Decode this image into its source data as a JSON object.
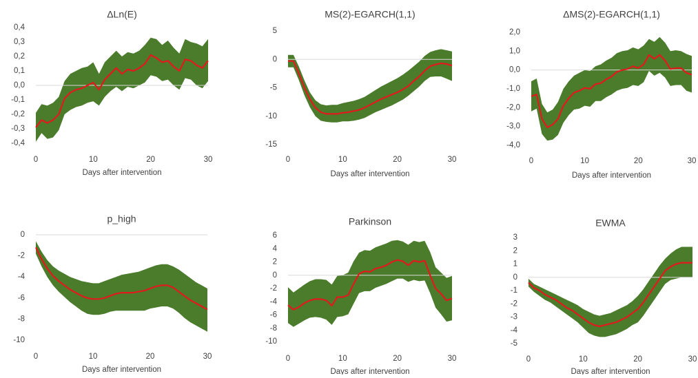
{
  "chart_data": [
    {
      "type": "area",
      "title": "ΔLn(E)",
      "xlabel": "Days after intervention",
      "ylabel": "",
      "xlim": [
        0,
        30
      ],
      "ylim": [
        -0.4,
        0.4
      ],
      "xticks": [
        0,
        10,
        20,
        30
      ],
      "yticks": [
        -0.4,
        -0.3,
        -0.2,
        -0.1,
        0.0,
        0.1,
        0.2,
        0.3,
        0.4
      ],
      "ytick_labels": [
        "-0,4",
        "-0,3",
        "-0,2",
        "-0,1",
        "0,0",
        "0,1",
        "0,2",
        "0,3",
        "0,4"
      ],
      "xtick_labels": [
        "0",
        "10",
        "20",
        "30"
      ],
      "x": [
        0,
        1,
        2,
        3,
        4,
        5,
        6,
        7,
        8,
        9,
        10,
        11,
        12,
        13,
        14,
        15,
        16,
        17,
        18,
        19,
        20,
        21,
        22,
        23,
        24,
        25,
        26,
        27,
        28,
        29,
        30
      ],
      "series": [
        {
          "role": "estimate",
          "color": "#e31a1c",
          "values": [
            -0.29,
            -0.24,
            -0.26,
            -0.24,
            -0.2,
            -0.09,
            -0.05,
            -0.03,
            -0.02,
            0.0,
            0.02,
            -0.03,
            0.04,
            0.08,
            0.12,
            0.08,
            0.11,
            0.1,
            0.12,
            0.15,
            0.21,
            0.19,
            0.16,
            0.17,
            0.13,
            0.1,
            0.18,
            0.17,
            0.14,
            0.12,
            0.17
          ]
        },
        {
          "role": "upper_band",
          "color": "#4a7c2b",
          "values": [
            -0.19,
            -0.13,
            -0.14,
            -0.12,
            -0.08,
            0.03,
            0.08,
            0.1,
            0.12,
            0.13,
            0.16,
            0.08,
            0.16,
            0.2,
            0.24,
            0.2,
            0.23,
            0.22,
            0.24,
            0.28,
            0.33,
            0.32,
            0.28,
            0.31,
            0.26,
            0.22,
            0.32,
            0.3,
            0.29,
            0.27,
            0.32
          ]
        },
        {
          "role": "lower_band",
          "color": "#4a7c2b",
          "values": [
            -0.39,
            -0.33,
            -0.37,
            -0.36,
            -0.31,
            -0.2,
            -0.17,
            -0.15,
            -0.14,
            -0.12,
            -0.11,
            -0.14,
            -0.08,
            -0.04,
            -0.01,
            -0.04,
            -0.01,
            -0.02,
            0.0,
            0.02,
            0.07,
            0.06,
            0.03,
            0.04,
            0.0,
            -0.03,
            0.05,
            0.04,
            0.0,
            -0.02,
            0.03
          ]
        }
      ]
    },
    {
      "type": "area",
      "title": "MS(2)-EGARCH(1,1)",
      "xlabel": "Days after intervention",
      "ylabel": "",
      "xlim": [
        0,
        30
      ],
      "ylim": [
        -15,
        5
      ],
      "xticks": [
        0,
        10,
        20,
        30
      ],
      "yticks": [
        -15,
        -10,
        -5,
        0,
        5
      ],
      "ytick_labels": [
        "-15",
        "-10",
        "-5",
        "0",
        "5"
      ],
      "xtick_labels": [
        "0",
        "10",
        "20",
        "30"
      ],
      "x": [
        0,
        1,
        2,
        3,
        4,
        5,
        6,
        7,
        8,
        9,
        10,
        11,
        12,
        13,
        14,
        15,
        16,
        17,
        18,
        19,
        20,
        21,
        22,
        23,
        24,
        25,
        26,
        27,
        28,
        29,
        30
      ],
      "series": [
        {
          "role": "estimate",
          "color": "#e31a1c",
          "values": [
            -0.3,
            -0.3,
            -2.5,
            -5.0,
            -7.0,
            -8.5,
            -9.3,
            -9.6,
            -9.6,
            -9.6,
            -9.4,
            -9.3,
            -9.1,
            -8.9,
            -8.5,
            -8.0,
            -7.5,
            -7.0,
            -6.6,
            -6.2,
            -5.8,
            -5.3,
            -4.7,
            -3.8,
            -3.0,
            -2.0,
            -1.2,
            -0.9,
            -0.7,
            -0.8,
            -1.1
          ]
        },
        {
          "role": "upper_band",
          "color": "#4a7c2b",
          "values": [
            0.8,
            0.8,
            -1.3,
            -3.7,
            -5.8,
            -7.2,
            -7.9,
            -8.1,
            -8.0,
            -8.0,
            -7.7,
            -7.5,
            -7.3,
            -7.0,
            -6.6,
            -6.0,
            -5.4,
            -4.8,
            -4.3,
            -3.8,
            -3.3,
            -2.7,
            -2.0,
            -1.2,
            -0.4,
            0.6,
            1.3,
            1.6,
            1.8,
            1.6,
            1.4
          ]
        },
        {
          "role": "lower_band",
          "color": "#4a7c2b",
          "values": [
            -1.4,
            -1.4,
            -3.7,
            -6.3,
            -8.4,
            -10.0,
            -10.8,
            -11.0,
            -11.1,
            -11.1,
            -10.9,
            -10.9,
            -10.8,
            -10.6,
            -10.3,
            -9.8,
            -9.3,
            -8.9,
            -8.5,
            -8.1,
            -7.6,
            -7.1,
            -6.4,
            -5.6,
            -4.8,
            -3.8,
            -3.1,
            -3.0,
            -3.0,
            -3.4,
            -3.8
          ]
        }
      ]
    },
    {
      "type": "area",
      "title": "ΔMS(2)-EGARCH(1,1)",
      "xlabel": "Days after intervention",
      "ylabel": "",
      "xlim": [
        0,
        30
      ],
      "ylim": [
        -4,
        2
      ],
      "xticks": [
        0,
        10,
        20,
        30
      ],
      "yticks": [
        -4,
        -3,
        -2,
        -1,
        0,
        1,
        2
      ],
      "ytick_labels": [
        "-4,0",
        "-3,0",
        "-2,0",
        "-1,0",
        "0,0",
        "1,0",
        "2,0"
      ],
      "xtick_labels": [
        "0",
        "10",
        "20",
        "30"
      ],
      "x": [
        0,
        1,
        2,
        3,
        4,
        5,
        6,
        7,
        8,
        9,
        10,
        11,
        12,
        13,
        14,
        15,
        16,
        17,
        18,
        19,
        20,
        21,
        22,
        23,
        24,
        25,
        26,
        27,
        28,
        29,
        30
      ],
      "series": [
        {
          "role": "estimate",
          "color": "#e31a1c",
          "values": [
            -1.4,
            -1.3,
            -2.6,
            -3.05,
            -2.9,
            -2.6,
            -1.9,
            -1.5,
            -1.2,
            -1.1,
            -0.95,
            -1.0,
            -0.75,
            -0.7,
            -0.5,
            -0.35,
            -0.1,
            0.0,
            0.05,
            0.2,
            0.1,
            0.3,
            0.8,
            0.6,
            0.8,
            0.5,
            0.05,
            0.1,
            0.1,
            -0.15,
            -0.25
          ]
        },
        {
          "role": "upper_band",
          "color": "#4a7c2b",
          "values": [
            -0.6,
            -0.45,
            -1.8,
            -2.25,
            -2.1,
            -1.7,
            -1.0,
            -0.6,
            -0.3,
            -0.15,
            0.0,
            -0.05,
            0.2,
            0.3,
            0.5,
            0.65,
            0.9,
            1.0,
            1.05,
            1.2,
            1.1,
            1.3,
            1.65,
            1.5,
            1.75,
            1.45,
            1.0,
            1.05,
            1.0,
            0.85,
            0.75
          ]
        },
        {
          "role": "lower_band",
          "color": "#4a7c2b",
          "values": [
            -2.2,
            -2.05,
            -3.4,
            -3.75,
            -3.7,
            -3.45,
            -2.8,
            -2.4,
            -2.1,
            -2.05,
            -1.9,
            -1.95,
            -1.65,
            -1.65,
            -1.45,
            -1.3,
            -1.1,
            -1.0,
            -0.95,
            -0.8,
            -0.85,
            -0.65,
            -0.05,
            -0.3,
            -0.15,
            -0.4,
            -0.85,
            -0.8,
            -0.8,
            -1.1,
            -1.2
          ]
        }
      ]
    },
    {
      "type": "area",
      "title": "p_high",
      "xlabel": "Days after intervention",
      "ylabel": "",
      "xlim": [
        0,
        30
      ],
      "ylim": [
        -10,
        0
      ],
      "xticks": [
        0,
        10,
        20,
        30
      ],
      "yticks": [
        -10,
        -8,
        -6,
        -4,
        -2,
        0
      ],
      "ytick_labels": [
        "-10",
        "-8",
        "-6",
        "-4",
        "-2",
        "0"
      ],
      "xtick_labels": [
        "0",
        "10",
        "20",
        "30"
      ],
      "x": [
        0,
        1,
        2,
        3,
        4,
        5,
        6,
        7,
        8,
        9,
        10,
        11,
        12,
        13,
        14,
        15,
        16,
        17,
        18,
        19,
        20,
        21,
        22,
        23,
        24,
        25,
        26,
        27,
        28,
        29,
        30
      ],
      "series": [
        {
          "role": "estimate",
          "color": "#e31a1c",
          "values": [
            -1.2,
            -2.3,
            -3.2,
            -3.9,
            -4.4,
            -4.8,
            -5.2,
            -5.5,
            -5.8,
            -6.0,
            -6.1,
            -6.1,
            -6.0,
            -5.8,
            -5.6,
            -5.5,
            -5.5,
            -5.5,
            -5.4,
            -5.3,
            -5.1,
            -4.9,
            -4.8,
            -4.8,
            -5.0,
            -5.4,
            -5.8,
            -6.2,
            -6.5,
            -6.8,
            -7.1
          ]
        },
        {
          "role": "upper_band",
          "color": "#4a7c2b",
          "values": [
            -0.6,
            -1.6,
            -2.4,
            -3.0,
            -3.4,
            -3.7,
            -4.0,
            -4.2,
            -4.4,
            -4.5,
            -4.6,
            -4.6,
            -4.4,
            -4.2,
            -4.0,
            -3.8,
            -3.7,
            -3.6,
            -3.5,
            -3.3,
            -3.1,
            -2.9,
            -2.8,
            -2.8,
            -3.0,
            -3.3,
            -3.7,
            -4.1,
            -4.5,
            -4.8,
            -5.1
          ]
        },
        {
          "role": "lower_band",
          "color": "#4a7c2b",
          "values": [
            -1.8,
            -3.0,
            -4.0,
            -4.8,
            -5.4,
            -5.9,
            -6.4,
            -6.8,
            -7.2,
            -7.5,
            -7.6,
            -7.6,
            -7.5,
            -7.3,
            -7.2,
            -7.2,
            -7.2,
            -7.2,
            -7.2,
            -7.2,
            -7.0,
            -6.9,
            -6.8,
            -6.8,
            -7.0,
            -7.4,
            -7.9,
            -8.3,
            -8.6,
            -8.9,
            -9.2
          ]
        }
      ]
    },
    {
      "type": "area",
      "title": "Parkinson",
      "xlabel": "Days after intervention",
      "ylabel": "",
      "xlim": [
        0,
        30
      ],
      "ylim": [
        -10,
        6
      ],
      "xticks": [
        0,
        10,
        20,
        30
      ],
      "yticks": [
        -10,
        -8,
        -6,
        -4,
        -2,
        0,
        2,
        4,
        6
      ],
      "ytick_labels": [
        "-10",
        "-8",
        "-6",
        "-4",
        "-2",
        "0",
        "2",
        "4",
        "6"
      ],
      "xtick_labels": [
        "0",
        "10",
        "20",
        "30"
      ],
      "x": [
        0,
        1,
        2,
        3,
        4,
        5,
        6,
        7,
        8,
        9,
        10,
        11,
        12,
        13,
        14,
        15,
        16,
        17,
        18,
        19,
        20,
        21,
        22,
        23,
        24,
        25,
        26,
        27,
        28,
        29,
        30
      ],
      "series": [
        {
          "role": "estimate",
          "color": "#e31a1c",
          "values": [
            -4.5,
            -5.2,
            -4.8,
            -4.2,
            -3.8,
            -3.6,
            -3.6,
            -3.8,
            -4.6,
            -3.3,
            -3.3,
            -3.0,
            -1.3,
            0.2,
            0.6,
            0.5,
            1.0,
            1.2,
            1.5,
            2.0,
            2.3,
            2.1,
            1.5,
            2.2,
            2.0,
            2.2,
            0.0,
            -2.0,
            -2.8,
            -3.8,
            -3.5
          ]
        },
        {
          "role": "upper_band",
          "color": "#4a7c2b",
          "values": [
            -1.8,
            -2.6,
            -2.0,
            -1.4,
            -0.9,
            -0.6,
            -0.6,
            -0.7,
            -1.4,
            -0.1,
            0.0,
            0.4,
            2.1,
            3.4,
            3.8,
            3.7,
            4.2,
            4.5,
            4.8,
            5.2,
            5.3,
            5.1,
            4.6,
            5.2,
            5.0,
            5.2,
            3.5,
            1.2,
            0.4,
            -0.4,
            -0.1
          ]
        },
        {
          "role": "lower_band",
          "color": "#4a7c2b",
          "values": [
            -7.2,
            -7.8,
            -7.3,
            -6.8,
            -6.4,
            -6.3,
            -6.4,
            -6.7,
            -7.5,
            -6.3,
            -6.2,
            -5.9,
            -4.3,
            -2.7,
            -2.4,
            -2.4,
            -1.9,
            -1.6,
            -1.3,
            -0.9,
            -0.5,
            -0.5,
            -1.0,
            -0.7,
            -0.9,
            -0.8,
            -2.7,
            -4.9,
            -5.9,
            -7.0,
            -6.8
          ]
        }
      ]
    },
    {
      "type": "area",
      "title": "EWMA",
      "xlabel": "Days after intervention",
      "ylabel": "",
      "xlim": [
        0,
        30
      ],
      "ylim": [
        -5,
        3
      ],
      "xticks": [
        0,
        10,
        20,
        30
      ],
      "yticks": [
        -5,
        -4,
        -3,
        -2,
        -1,
        0,
        1,
        2,
        3
      ],
      "ytick_labels": [
        "-5",
        "-4",
        "-3",
        "-2",
        "-1",
        "0",
        "1",
        "2",
        "3"
      ],
      "xtick_labels": [
        "0",
        "10",
        "20",
        "30"
      ],
      "x": [
        0,
        1,
        2,
        3,
        4,
        5,
        6,
        7,
        8,
        9,
        10,
        11,
        12,
        13,
        14,
        15,
        16,
        17,
        18,
        19,
        20,
        21,
        22,
        23,
        24,
        25,
        26,
        27,
        28,
        29,
        30
      ],
      "series": [
        {
          "role": "estimate",
          "color": "#e31a1c",
          "values": [
            -0.4,
            -0.8,
            -1.0,
            -1.3,
            -1.5,
            -1.7,
            -2.0,
            -2.3,
            -2.5,
            -2.8,
            -3.1,
            -3.4,
            -3.6,
            -3.7,
            -3.6,
            -3.5,
            -3.4,
            -3.2,
            -3.0,
            -2.7,
            -2.4,
            -1.9,
            -1.3,
            -0.7,
            -0.1,
            0.5,
            0.8,
            1.0,
            1.1,
            1.1,
            1.1
          ]
        },
        {
          "role": "upper_band",
          "color": "#4a7c2b",
          "values": [
            -0.1,
            -0.5,
            -0.7,
            -0.9,
            -1.1,
            -1.3,
            -1.5,
            -1.7,
            -1.9,
            -2.1,
            -2.4,
            -2.6,
            -2.8,
            -2.9,
            -2.8,
            -2.7,
            -2.5,
            -2.3,
            -2.1,
            -1.8,
            -1.4,
            -0.9,
            -0.3,
            0.3,
            0.9,
            1.4,
            1.8,
            2.1,
            2.3,
            2.3,
            2.3
          ]
        },
        {
          "role": "lower_band",
          "color": "#4a7c2b",
          "values": [
            -0.7,
            -1.1,
            -1.4,
            -1.7,
            -1.9,
            -2.2,
            -2.5,
            -2.8,
            -3.1,
            -3.4,
            -3.8,
            -4.2,
            -4.4,
            -4.5,
            -4.5,
            -4.4,
            -4.3,
            -4.1,
            -3.9,
            -3.6,
            -3.4,
            -2.9,
            -2.3,
            -1.7,
            -1.1,
            -0.5,
            -0.2,
            -0.1,
            0.0,
            0.0,
            0.0
          ]
        }
      ]
    }
  ]
}
